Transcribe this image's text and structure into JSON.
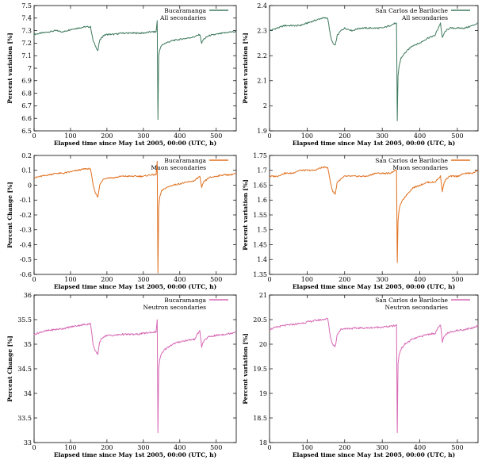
{
  "chart_data": [
    {
      "type": "line",
      "xlabel": "Elapsed time since May 1st 2005, 00:00 (UTC, h)",
      "ylabel": "Percent variation [%]",
      "xlim": [
        0,
        555
      ],
      "ylim": [
        6.5,
        7.5
      ],
      "xticks": [
        "0",
        "100",
        "200",
        "300",
        "400",
        "500"
      ],
      "yticks": [
        "6.5",
        "6.6",
        "6.7",
        "6.8",
        "6.9",
        "7",
        "7.1",
        "7.2",
        "7.3",
        "7.4",
        "7.5"
      ],
      "legend": [
        "Bucaramanga",
        "All secondaries"
      ],
      "legend_position": "top-right",
      "color": "#3f7a5e",
      "series": [
        {
          "x": [
            0,
            20,
            40,
            60,
            80,
            100,
            120,
            140,
            155,
            162,
            168,
            175,
            180,
            190,
            200,
            220,
            240,
            260,
            280,
            300,
            320,
            335,
            338,
            340,
            342,
            345,
            350,
            360,
            380,
            400,
            420,
            440,
            455,
            460,
            465,
            470,
            480,
            500,
            520,
            540,
            555
          ],
          "y": [
            7.27,
            7.28,
            7.29,
            7.3,
            7.29,
            7.31,
            7.32,
            7.33,
            7.33,
            7.22,
            7.18,
            7.14,
            7.22,
            7.26,
            7.27,
            7.27,
            7.28,
            7.28,
            7.28,
            7.28,
            7.29,
            7.29,
            7.38,
            6.59,
            7.1,
            7.15,
            7.18,
            7.2,
            7.22,
            7.23,
            7.24,
            7.25,
            7.27,
            7.2,
            7.23,
            7.24,
            7.26,
            7.27,
            7.28,
            7.29,
            7.29
          ]
        }
      ]
    },
    {
      "type": "line",
      "xlabel": "Elapsed time since May 1st 2005, 00:00 (UTC, h)",
      "ylabel": "Percent variation [%]",
      "xlim": [
        0,
        555
      ],
      "ylim": [
        1.9,
        2.4
      ],
      "xticks": [
        "0",
        "100",
        "200",
        "300",
        "400",
        "500"
      ],
      "yticks": [
        "1.9",
        "2",
        "2.1",
        "2.2",
        "2.3",
        "2.4"
      ],
      "legend": [
        "San Carlos de Bariloche",
        "All secondaries"
      ],
      "legend_position": "top-right",
      "color": "#3f7a5e",
      "series": [
        {
          "x": [
            0,
            20,
            40,
            60,
            80,
            100,
            120,
            140,
            155,
            162,
            168,
            175,
            180,
            190,
            200,
            220,
            240,
            260,
            280,
            300,
            320,
            335,
            338,
            340,
            342,
            345,
            350,
            360,
            380,
            400,
            420,
            440,
            455,
            460,
            465,
            470,
            480,
            500,
            520,
            540,
            555
          ],
          "y": [
            2.3,
            2.31,
            2.32,
            2.32,
            2.32,
            2.33,
            2.34,
            2.35,
            2.35,
            2.28,
            2.25,
            2.24,
            2.28,
            2.3,
            2.31,
            2.3,
            2.31,
            2.31,
            2.31,
            2.31,
            2.32,
            2.33,
            2.33,
            1.94,
            2.12,
            2.16,
            2.19,
            2.21,
            2.24,
            2.25,
            2.27,
            2.28,
            2.33,
            2.27,
            2.29,
            2.3,
            2.31,
            2.31,
            2.31,
            2.32,
            2.33
          ]
        }
      ]
    },
    {
      "type": "line",
      "xlabel": "Elapsed time since May 1st 2005, 00:00 (UTC, h)",
      "ylabel": "Percent Change [%]",
      "xlim": [
        0,
        555
      ],
      "ylim": [
        -0.6,
        0.2
      ],
      "xticks": [
        "0",
        "100",
        "200",
        "300",
        "400",
        "500"
      ],
      "yticks": [
        "-0.6",
        "-0.5",
        "-0.4",
        "-0.3",
        "-0.2",
        "-0.1",
        "0",
        "0.1",
        "0.2"
      ],
      "legend": [
        "Bucaramanga",
        "Muon secondaries"
      ],
      "legend_position": "top-right",
      "color": "#e0701f",
      "series": [
        {
          "x": [
            0,
            20,
            40,
            60,
            80,
            100,
            120,
            140,
            155,
            162,
            168,
            175,
            180,
            190,
            200,
            220,
            240,
            260,
            280,
            300,
            320,
            335,
            338,
            340,
            342,
            345,
            350,
            360,
            380,
            400,
            420,
            440,
            455,
            460,
            465,
            470,
            480,
            500,
            520,
            540,
            555
          ],
          "y": [
            0.05,
            0.06,
            0.07,
            0.08,
            0.08,
            0.09,
            0.1,
            0.11,
            0.11,
            0.0,
            -0.05,
            -0.08,
            0.0,
            0.04,
            0.05,
            0.05,
            0.06,
            0.06,
            0.06,
            0.06,
            0.07,
            0.07,
            0.16,
            -0.59,
            -0.15,
            -0.08,
            -0.04,
            -0.02,
            0.0,
            0.01,
            0.02,
            0.03,
            0.06,
            -0.02,
            0.02,
            0.03,
            0.05,
            0.06,
            0.07,
            0.07,
            0.08
          ]
        }
      ]
    },
    {
      "type": "line",
      "xlabel": "Elapsed time since May 1st 2005, 00:00 (UTC, h)",
      "ylabel": "Percent variation [%]",
      "xlim": [
        0,
        555
      ],
      "ylim": [
        1.35,
        1.75
      ],
      "xticks": [
        "0",
        "100",
        "200",
        "300",
        "400",
        "500"
      ],
      "yticks": [
        "1.35",
        "1.4",
        "1.45",
        "1.5",
        "1.55",
        "1.6",
        "1.65",
        "1.7",
        "1.75"
      ],
      "legend": [
        "San Carlos de Bariloche",
        "Muon secondaries"
      ],
      "legend_position": "top-right",
      "color": "#e0701f",
      "series": [
        {
          "x": [
            0,
            20,
            40,
            60,
            80,
            100,
            120,
            140,
            155,
            162,
            168,
            175,
            180,
            190,
            200,
            220,
            240,
            260,
            280,
            300,
            320,
            335,
            338,
            340,
            342,
            345,
            350,
            360,
            380,
            400,
            420,
            440,
            455,
            460,
            465,
            470,
            480,
            500,
            520,
            540,
            555
          ],
          "y": [
            1.68,
            1.68,
            1.69,
            1.69,
            1.7,
            1.7,
            1.7,
            1.71,
            1.71,
            1.66,
            1.63,
            1.62,
            1.66,
            1.67,
            1.68,
            1.68,
            1.68,
            1.68,
            1.69,
            1.69,
            1.69,
            1.7,
            1.7,
            1.39,
            1.53,
            1.57,
            1.59,
            1.61,
            1.64,
            1.65,
            1.66,
            1.66,
            1.68,
            1.63,
            1.66,
            1.67,
            1.68,
            1.68,
            1.69,
            1.69,
            1.7
          ]
        }
      ]
    },
    {
      "type": "line",
      "xlabel": "Elapsed time since May 1st 2005, 00:00 (UTC, h)",
      "ylabel": "Percent Change [%]",
      "xlim": [
        0,
        555
      ],
      "ylim": [
        33,
        36
      ],
      "xticks": [
        "0",
        "100",
        "200",
        "300",
        "400",
        "500"
      ],
      "yticks": [
        "33",
        "33.5",
        "34",
        "34.5",
        "35",
        "35.5",
        "36"
      ],
      "legend": [
        "Bucaramanga",
        "Neutron secondaries"
      ],
      "legend_position": "top-right",
      "color": "#d668b4",
      "series": [
        {
          "x": [
            0,
            20,
            40,
            60,
            80,
            100,
            120,
            140,
            155,
            162,
            168,
            175,
            180,
            190,
            200,
            220,
            240,
            260,
            280,
            300,
            320,
            335,
            338,
            340,
            342,
            345,
            350,
            360,
            380,
            400,
            420,
            440,
            455,
            460,
            465,
            470,
            480,
            500,
            520,
            540,
            555
          ],
          "y": [
            35.2,
            35.25,
            35.28,
            35.3,
            35.32,
            35.35,
            35.38,
            35.4,
            35.42,
            35.0,
            34.85,
            34.8,
            35.05,
            35.15,
            35.18,
            35.18,
            35.2,
            35.2,
            35.2,
            35.22,
            35.24,
            35.25,
            35.5,
            33.2,
            34.5,
            34.7,
            34.8,
            34.9,
            35.0,
            35.05,
            35.08,
            35.1,
            35.28,
            34.95,
            35.05,
            35.1,
            35.15,
            35.18,
            35.2,
            35.22,
            35.26
          ]
        }
      ]
    },
    {
      "type": "line",
      "xlabel": "Elapsed time since May 1st 2005, 00:00 (UTC, h)",
      "ylabel": "Percent variation [%]",
      "xlim": [
        0,
        555
      ],
      "ylim": [
        18,
        21
      ],
      "xticks": [
        "0",
        "100",
        "200",
        "300",
        "400",
        "500"
      ],
      "yticks": [
        "18",
        "18.5",
        "19",
        "19.5",
        "20",
        "20.5",
        "21"
      ],
      "legend": [
        "San Carlos de Bariloche",
        "Neutron secondaries"
      ],
      "legend_position": "top-right",
      "color": "#d668b4",
      "series": [
        {
          "x": [
            0,
            20,
            40,
            60,
            80,
            100,
            120,
            140,
            155,
            162,
            168,
            175,
            180,
            190,
            200,
            220,
            240,
            260,
            280,
            300,
            320,
            335,
            338,
            340,
            342,
            345,
            350,
            360,
            380,
            400,
            420,
            440,
            455,
            460,
            465,
            470,
            480,
            500,
            520,
            540,
            555
          ],
          "y": [
            20.3,
            20.35,
            20.38,
            20.4,
            20.42,
            20.45,
            20.48,
            20.5,
            20.52,
            20.15,
            20.0,
            19.95,
            20.2,
            20.3,
            20.32,
            20.32,
            20.33,
            20.33,
            20.34,
            20.35,
            20.36,
            20.38,
            20.4,
            18.2,
            19.6,
            19.8,
            19.9,
            20.0,
            20.1,
            20.15,
            20.2,
            20.22,
            20.4,
            20.05,
            20.15,
            20.2,
            20.25,
            20.28,
            20.3,
            20.33,
            20.38
          ]
        }
      ]
    }
  ]
}
